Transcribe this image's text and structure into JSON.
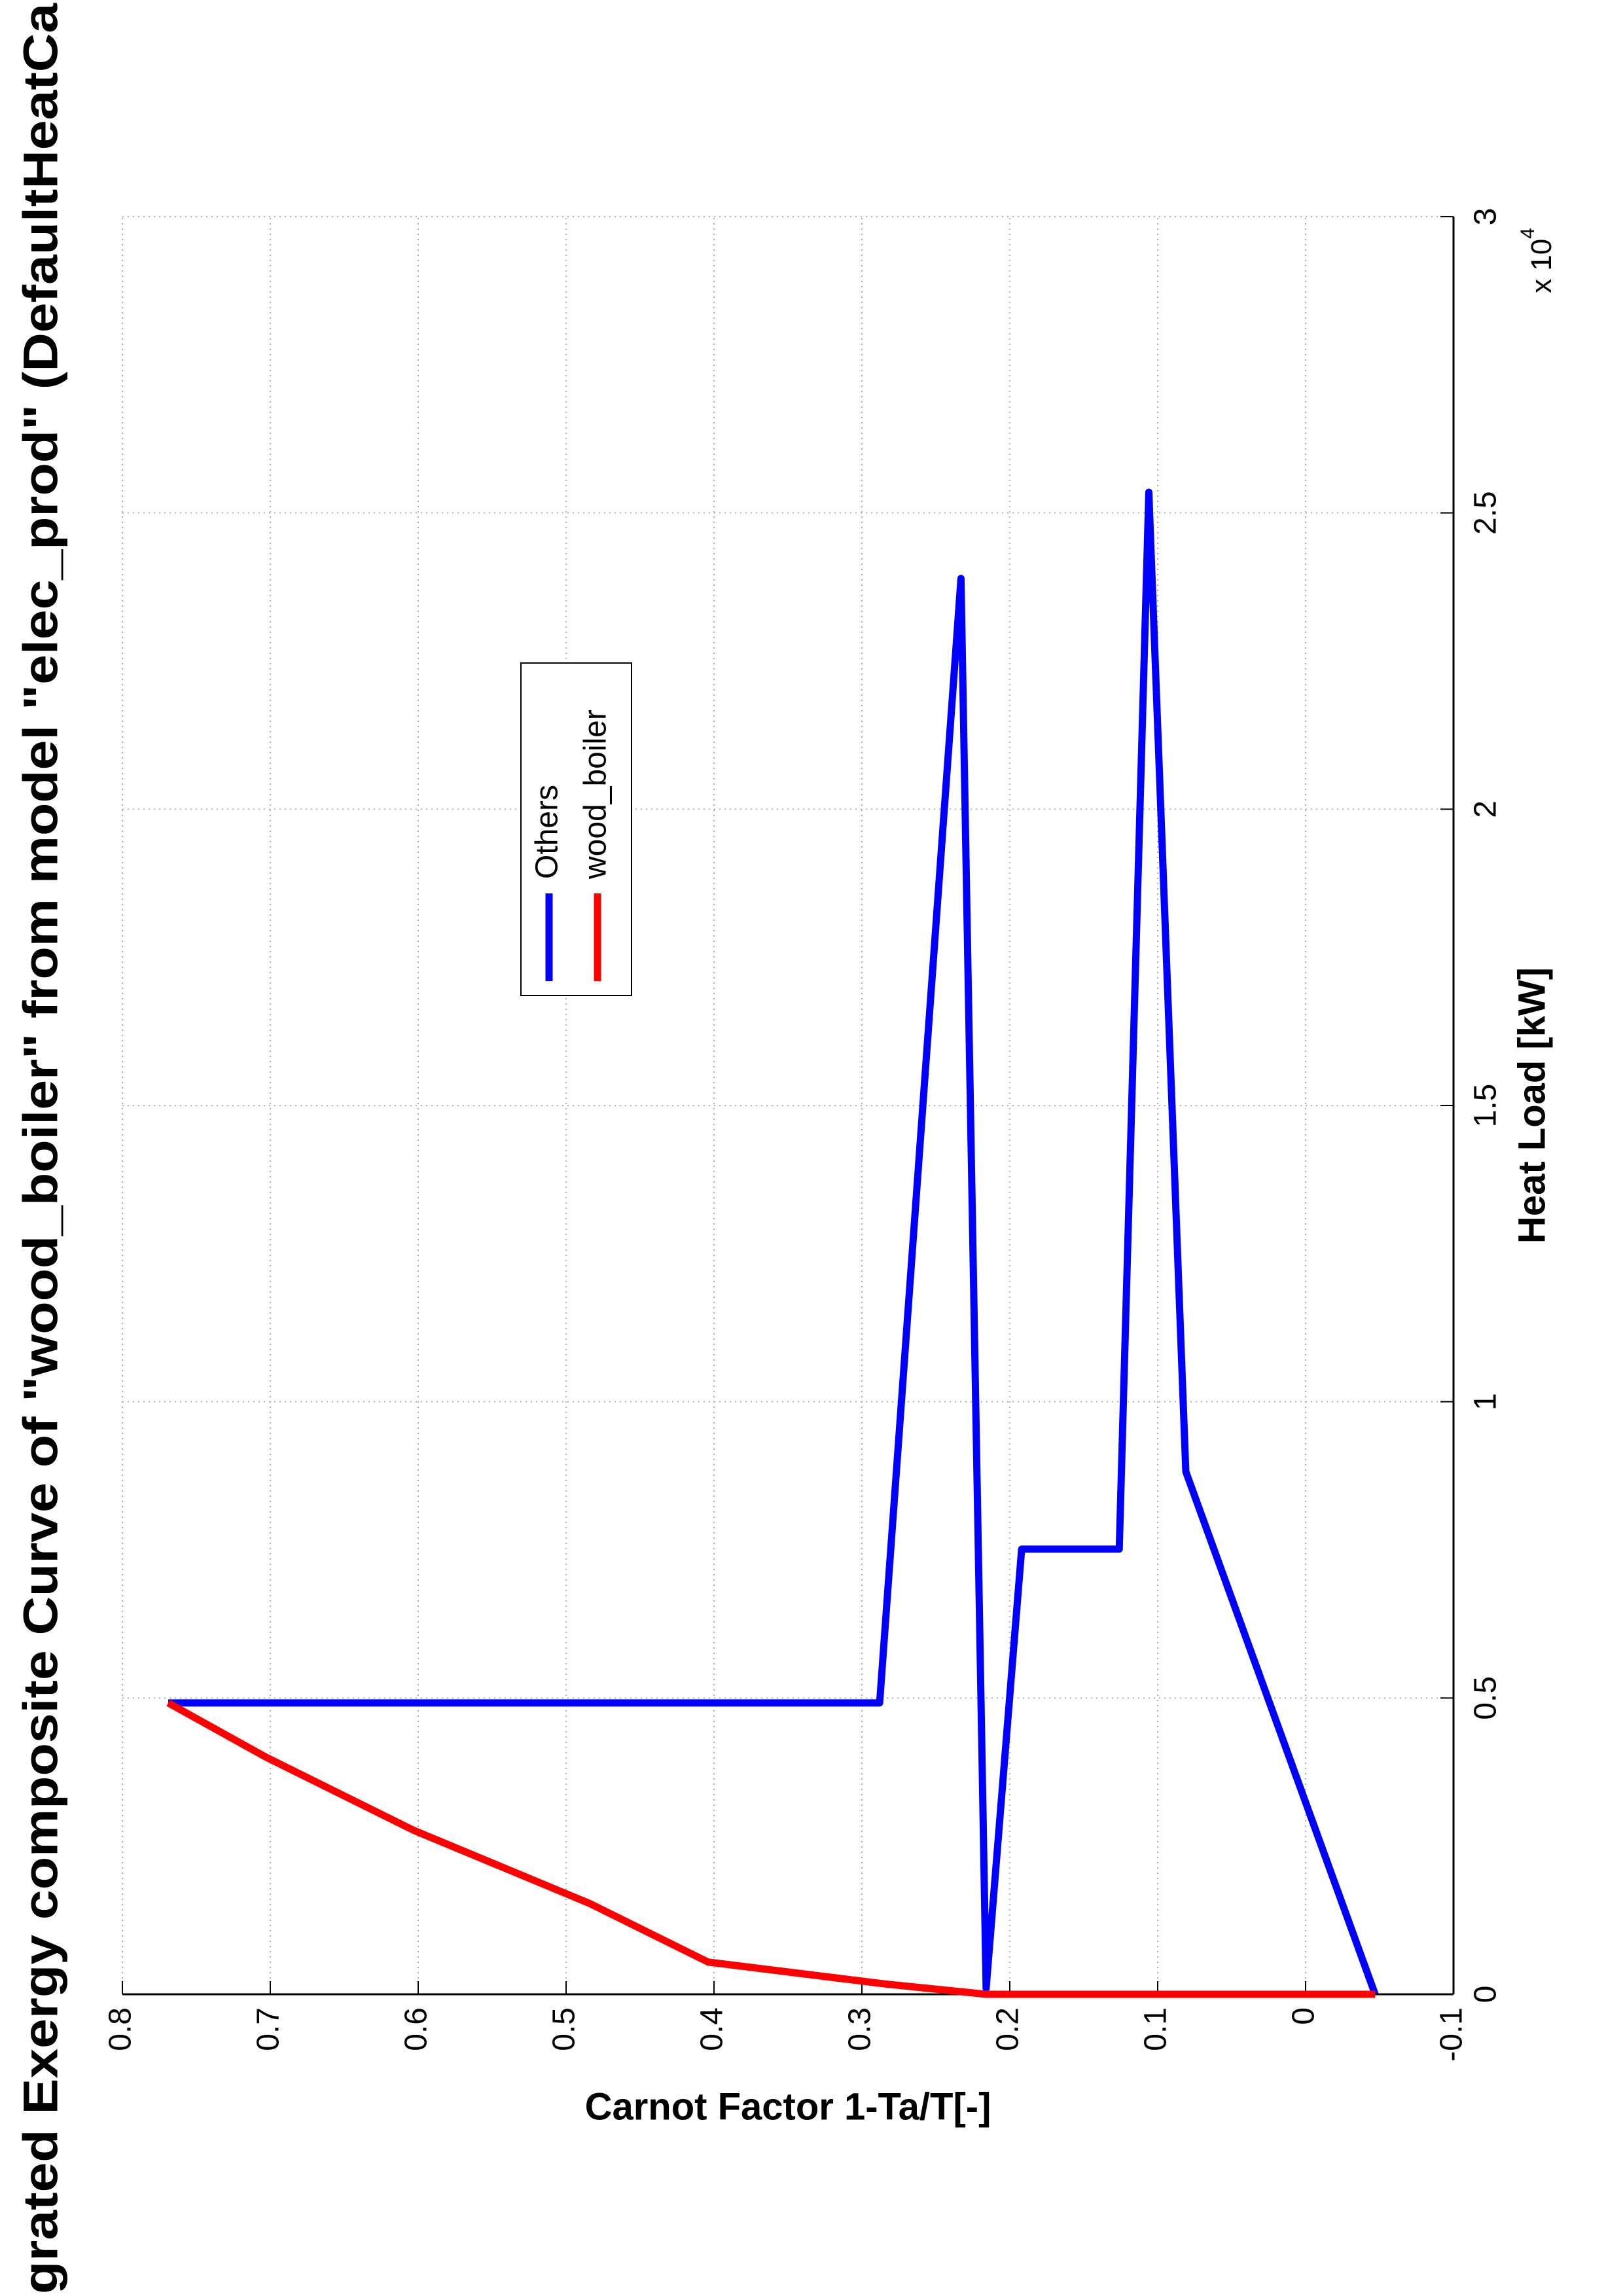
{
  "chart_data": {
    "type": "line",
    "title": "grated Exergy composite Curve of \"wood_boiler\" from model \"elec_prod\" (DefaultHeatCa",
    "xlabel": "Heat Load [kW]",
    "ylabel": "Carnot Factor 1-Ta/T[-]",
    "xscale_label": "x 10",
    "xscale_exponent": "4",
    "xlim": [
      0,
      30000
    ],
    "xticks": [
      {
        "value": 0,
        "label": "0"
      },
      {
        "value": 5000,
        "label": "0.5"
      },
      {
        "value": 10000,
        "label": "1"
      },
      {
        "value": 15000,
        "label": "1.5"
      },
      {
        "value": 20000,
        "label": "2"
      },
      {
        "value": 25000,
        "label": "2.5"
      },
      {
        "value": 30000,
        "label": "3"
      }
    ],
    "ylim": [
      -0.1,
      0.8
    ],
    "yticks": [
      -0.1,
      0,
      0.1,
      0.2,
      0.3,
      0.4,
      0.5,
      0.6,
      0.7,
      0.8
    ],
    "grid": true,
    "legend": "upper center",
    "series": [
      {
        "name": "Others",
        "color": "#0000ff",
        "x": [
          0,
          8822,
          25350,
          7512,
          7512,
          100,
          23894,
          4917,
          4917
        ],
        "values": [
          -0.047,
          0.081,
          0.106,
          0.126,
          0.192,
          0.216,
          0.233,
          0.288,
          0.769
        ]
      },
      {
        "name": "wood_boiler",
        "color": "#ff0000",
        "x": [
          0,
          0,
          173,
          544,
          1532,
          2767,
          4003,
          4917
        ],
        "values": [
          -0.047,
          0.216,
          0.284,
          0.404,
          0.484,
          0.603,
          0.703,
          0.769
        ]
      }
    ]
  }
}
